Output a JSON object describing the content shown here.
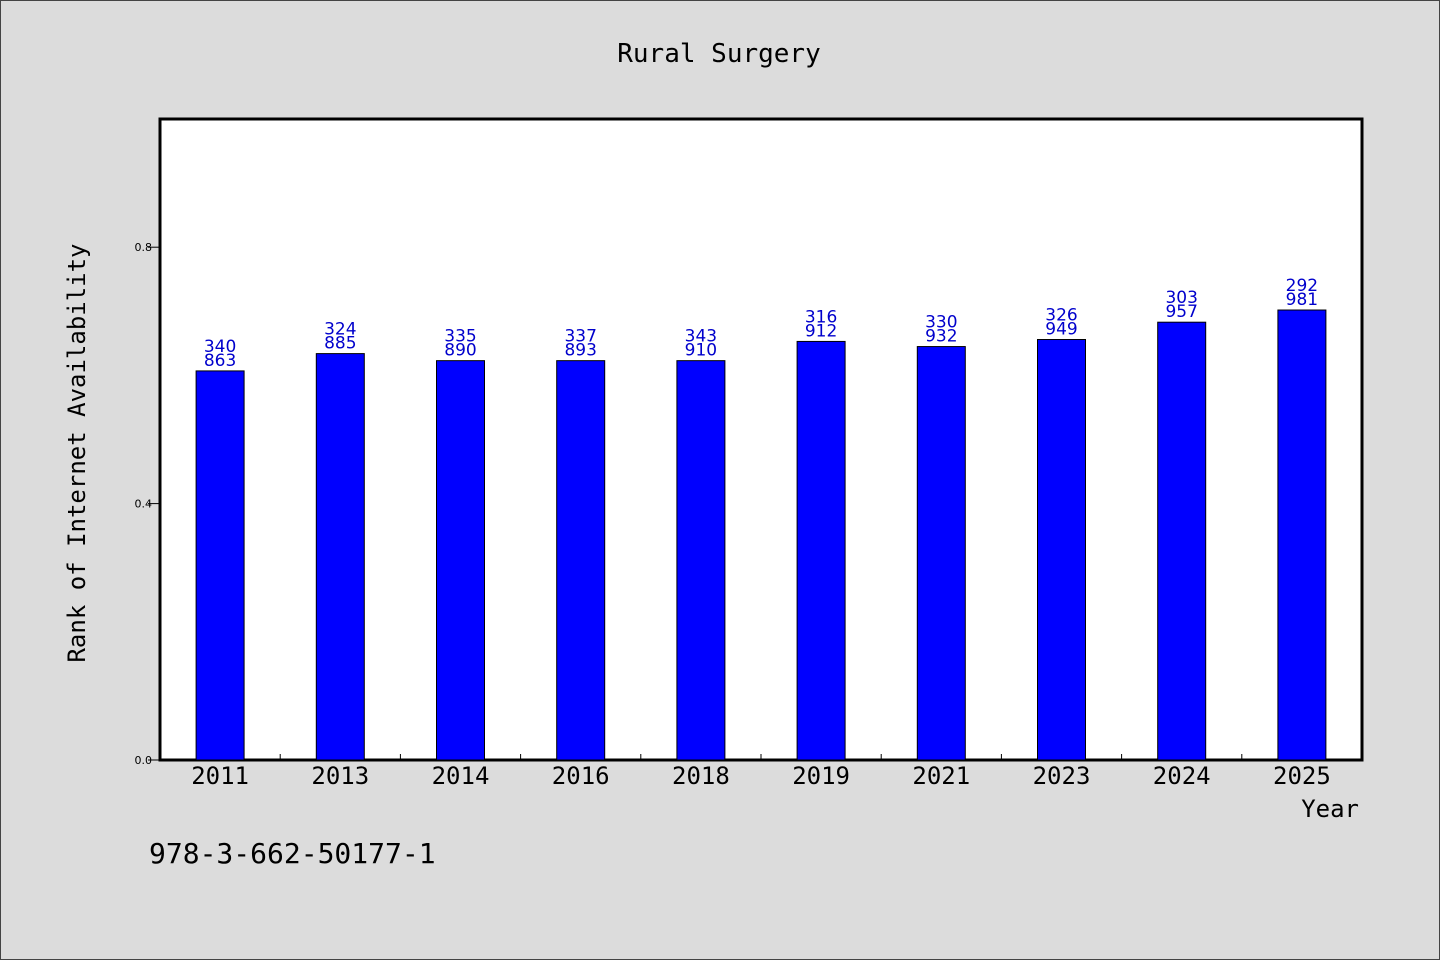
{
  "chart_data": {
    "type": "bar",
    "title": "Rural Surgery",
    "xlabel": "Year",
    "ylabel": "Rank of Internet Availability",
    "categories": [
      "2011",
      "2013",
      "2014",
      "2016",
      "2018",
      "2019",
      "2021",
      "2023",
      "2024",
      "2025"
    ],
    "values": [
      0.607,
      0.634,
      0.623,
      0.623,
      0.623,
      0.653,
      0.645,
      0.656,
      0.683,
      0.702
    ],
    "bar_labels_top": [
      "340",
      "324",
      "335",
      "337",
      "343",
      "316",
      "330",
      "326",
      "303",
      "292"
    ],
    "bar_labels_bottom": [
      "863",
      "885",
      "890",
      "893",
      "910",
      "912",
      "932",
      "949",
      "957",
      "981"
    ],
    "yticks": [
      0.0,
      0.4,
      0.8
    ],
    "ytick_labels": [
      "0.0",
      "0.4",
      "0.8"
    ],
    "ylim": [
      0,
      1.0
    ],
    "grid": false,
    "bar_color": "#0000ff",
    "label_color": "#0000cc"
  },
  "footer": {
    "isbn": "978-3-662-50177-1"
  }
}
